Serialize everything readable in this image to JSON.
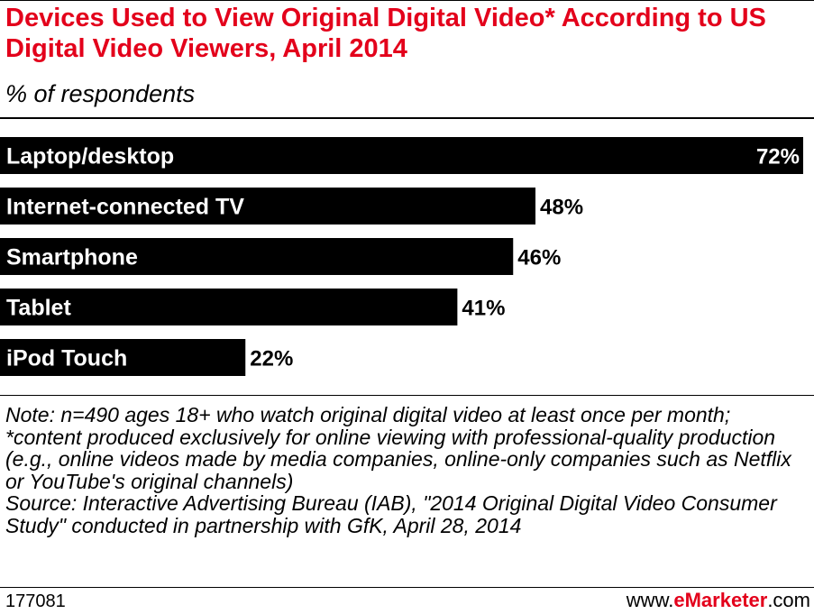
{
  "colors": {
    "title": "#e3001b",
    "bar": "#000000",
    "text": "#000000",
    "brand": "#e3001b",
    "bar_label_inside": "#ffffff"
  },
  "chart_data": {
    "type": "bar",
    "orientation": "horizontal",
    "title": "Devices Used to View Original Digital Video* According to US Digital Video Viewers, April 2014",
    "subtitle": "% of respondents",
    "categories": [
      "Laptop/desktop",
      "Internet-connected TV",
      "Smartphone",
      "Tablet",
      "iPod Touch"
    ],
    "values": [
      72,
      48,
      46,
      41,
      22
    ],
    "value_labels": [
      "72%",
      "48%",
      "46%",
      "41%",
      "22%"
    ],
    "unit": "%",
    "xlim": [
      0,
      72
    ],
    "grid": false,
    "legend": "none"
  },
  "note": {
    "text": "Note: n=490 ages 18+ who watch original digital video at least once per month; *content produced exclusively for online viewing with professional-quality production (e.g., online videos made by media companies, online-only companies such as Netflix or YouTube's original channels)",
    "source": "Source: Interactive Advertising Bureau (IAB), \"2014 Original Digital Video Consumer Study\" conducted in partnership with GfK, April 28, 2014"
  },
  "footer": {
    "chart_id": "177081",
    "brand_prefix": "www.",
    "brand_name": "eMarketer",
    "brand_suffix": ".com"
  }
}
